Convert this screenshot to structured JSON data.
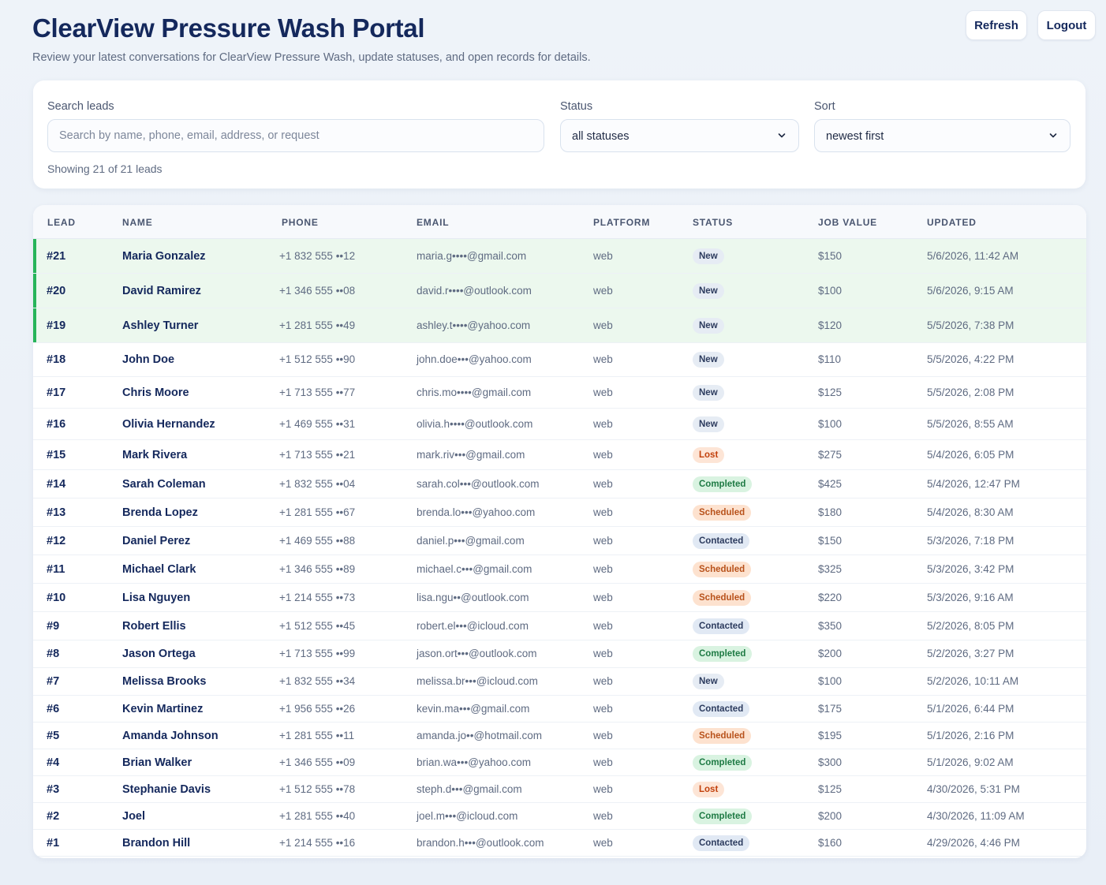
{
  "header": {
    "title": "ClearView Pressure Wash Portal",
    "subtitle": "Review your latest conversations for ClearView Pressure Wash, update statuses, and open records for details.",
    "refresh_label": "Refresh",
    "logout_label": "Logout"
  },
  "filters": {
    "search_label": "Search leads",
    "search_placeholder": "Search by name, phone, email, address, or request",
    "search_value": "",
    "status_label": "Status",
    "status_value": "all statuses",
    "sort_label": "Sort",
    "sort_value": "newest first",
    "count_text": "Showing 21 of 21 leads"
  },
  "table": {
    "columns": [
      "Lead",
      "Name",
      "Phone",
      "Email",
      "Platform",
      "Status",
      "Job value",
      "Updated"
    ],
    "rows": [
      {
        "lead": "#21",
        "name": "Maria Gonzalez",
        "phone": "+1 832 555 ••12",
        "email": "maria.g••••@gmail.com",
        "platform": "web",
        "status": "New",
        "value": "$150",
        "updated": "5/6/2026, 11:42 AM",
        "highlight": true
      },
      {
        "lead": "#20",
        "name": "David Ramirez",
        "phone": "+1 346 555 ••08",
        "email": "david.r••••@outlook.com",
        "platform": "web",
        "status": "New",
        "value": "$100",
        "updated": "5/6/2026, 9:15 AM",
        "highlight": true
      },
      {
        "lead": "#19",
        "name": "Ashley Turner",
        "phone": "+1 281 555 ••49",
        "email": "ashley.t••••@yahoo.com",
        "platform": "web",
        "status": "New",
        "value": "$120",
        "updated": "5/5/2026, 7:38 PM",
        "highlight": true
      },
      {
        "lead": "#18",
        "name": "John Doe",
        "phone": "+1 512 555 ••90",
        "email": "john.doe•••@yahoo.com",
        "platform": "web",
        "status": "New",
        "value": "$110",
        "updated": "5/5/2026, 4:22 PM",
        "highlight": false
      },
      {
        "lead": "#17",
        "name": "Chris Moore",
        "phone": "+1 713 555 ••77",
        "email": "chris.mo••••@gmail.com",
        "platform": "web",
        "status": "New",
        "value": "$125",
        "updated": "5/5/2026, 2:08 PM",
        "highlight": false
      },
      {
        "lead": "#16",
        "name": "Olivia Hernandez",
        "phone": "+1 469 555 ••31",
        "email": "olivia.h••••@outlook.com",
        "platform": "web",
        "status": "New",
        "value": "$100",
        "updated": "5/5/2026, 8:55 AM",
        "highlight": false
      },
      {
        "lead": "#15",
        "name": "Mark Rivera",
        "phone": "+1 713 555 ••21",
        "email": "mark.riv•••@gmail.com",
        "platform": "web",
        "status": "Lost",
        "value": "$275",
        "updated": "5/4/2026, 6:05 PM",
        "highlight": false
      },
      {
        "lead": "#14",
        "name": "Sarah Coleman",
        "phone": "+1 832 555 ••04",
        "email": "sarah.col•••@outlook.com",
        "platform": "web",
        "status": "Completed",
        "value": "$425",
        "updated": "5/4/2026, 12:47 PM",
        "highlight": false
      },
      {
        "lead": "#13",
        "name": "Brenda Lopez",
        "phone": "+1 281 555 ••67",
        "email": "brenda.lo•••@yahoo.com",
        "platform": "web",
        "status": "Scheduled",
        "value": "$180",
        "updated": "5/4/2026, 8:30 AM",
        "highlight": false
      },
      {
        "lead": "#12",
        "name": "Daniel Perez",
        "phone": "+1 469 555 ••88",
        "email": "daniel.p•••@gmail.com",
        "platform": "web",
        "status": "Contacted",
        "value": "$150",
        "updated": "5/3/2026, 7:18 PM",
        "highlight": false
      },
      {
        "lead": "#11",
        "name": "Michael Clark",
        "phone": "+1 346 555 ••89",
        "email": "michael.c•••@gmail.com",
        "platform": "web",
        "status": "Scheduled",
        "value": "$325",
        "updated": "5/3/2026, 3:42 PM",
        "highlight": false
      },
      {
        "lead": "#10",
        "name": "Lisa Nguyen",
        "phone": "+1 214 555 ••73",
        "email": "lisa.ngu••@outlook.com",
        "platform": "web",
        "status": "Scheduled",
        "value": "$220",
        "updated": "5/3/2026, 9:16 AM",
        "highlight": false
      },
      {
        "lead": "#9",
        "name": "Robert Ellis",
        "phone": "+1 512 555 ••45",
        "email": "robert.el•••@icloud.com",
        "platform": "web",
        "status": "Contacted",
        "value": "$350",
        "updated": "5/2/2026, 8:05 PM",
        "highlight": false
      },
      {
        "lead": "#8",
        "name": "Jason Ortega",
        "phone": "+1 713 555 ••99",
        "email": "jason.ort•••@outlook.com",
        "platform": "web",
        "status": "Completed",
        "value": "$200",
        "updated": "5/2/2026, 3:27 PM",
        "highlight": false
      },
      {
        "lead": "#7",
        "name": "Melissa Brooks",
        "phone": "+1 832 555 ••34",
        "email": "melissa.br•••@icloud.com",
        "platform": "web",
        "status": "New",
        "value": "$100",
        "updated": "5/2/2026, 10:11 AM",
        "highlight": false
      },
      {
        "lead": "#6",
        "name": "Kevin Martinez",
        "phone": "+1 956 555 ••26",
        "email": "kevin.ma•••@gmail.com",
        "platform": "web",
        "status": "Contacted",
        "value": "$175",
        "updated": "5/1/2026, 6:44 PM",
        "highlight": false
      },
      {
        "lead": "#5",
        "name": "Amanda Johnson",
        "phone": "+1 281 555 ••11",
        "email": "amanda.jo••@hotmail.com",
        "platform": "web",
        "status": "Scheduled",
        "value": "$195",
        "updated": "5/1/2026, 2:16 PM",
        "highlight": false
      },
      {
        "lead": "#4",
        "name": "Brian Walker",
        "phone": "+1 346 555 ••09",
        "email": "brian.wa•••@yahoo.com",
        "platform": "web",
        "status": "Completed",
        "value": "$300",
        "updated": "5/1/2026, 9:02 AM",
        "highlight": false
      },
      {
        "lead": "#3",
        "name": "Stephanie Davis",
        "phone": "+1 512 555 ••78",
        "email": "steph.d•••@gmail.com",
        "platform": "web",
        "status": "Lost",
        "value": "$125",
        "updated": "4/30/2026, 5:31 PM",
        "highlight": false
      },
      {
        "lead": "#2",
        "name": "Joel",
        "phone": "+1 281 555 ••40",
        "email": "joel.m•••@icloud.com",
        "platform": "web",
        "status": "Completed",
        "value": "$200",
        "updated": "4/30/2026, 11:09 AM",
        "highlight": false
      },
      {
        "lead": "#1",
        "name": "Brandon Hill",
        "phone": "+1 214 555 ••16",
        "email": "brandon.h•••@outlook.com",
        "platform": "web",
        "status": "Contacted",
        "value": "$160",
        "updated": "4/29/2026, 4:46 PM",
        "highlight": false
      }
    ]
  },
  "colors": {
    "title": "#14285c",
    "recent_accent": "#27b45a",
    "recent_bg": "#ecf8ee"
  },
  "icons": {
    "select_chevron": "chevron-down-icon"
  }
}
